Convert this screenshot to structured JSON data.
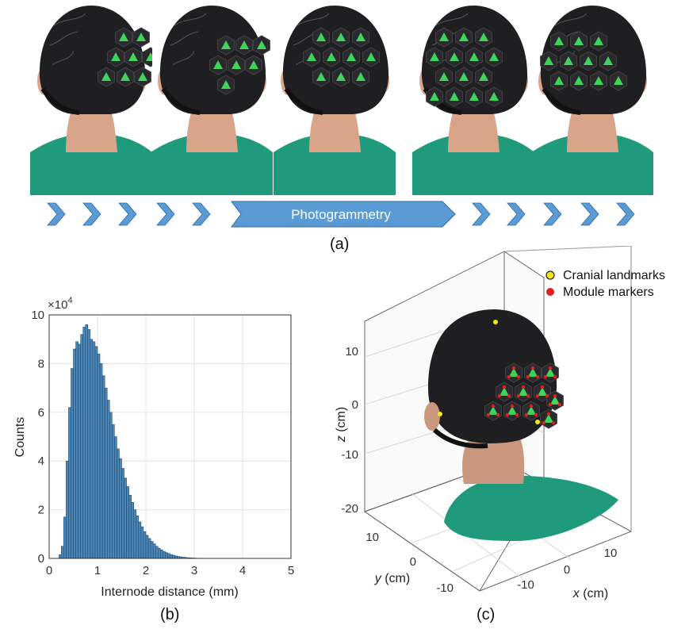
{
  "panel_a": {
    "label": "(a)",
    "arrow_text": "Photogrammetry"
  },
  "panel_b": {
    "label": "(b)",
    "exponent_label": "×10^4",
    "exponent_base": "×10",
    "exponent_power": "4"
  },
  "panel_c": {
    "label": "(c)",
    "legend": [
      {
        "label": "Cranial landmarks",
        "color": "#f3e61a"
      },
      {
        "label": "Module markers",
        "color": "#e31e1e"
      }
    ],
    "xlabel_var": "x",
    "xlabel_unit": " (cm)",
    "ylabel_var": "y",
    "ylabel_unit": " (cm)",
    "zlabel_var": "z",
    "zlabel_unit": " (cm)",
    "z_ticks": [
      "10",
      "0",
      "-10",
      "-20"
    ],
    "y_ticks": [
      "10",
      "0",
      "-10"
    ],
    "x_ticks": [
      "-10",
      "0",
      "10"
    ]
  },
  "colors": {
    "cap": "#1f1f22",
    "module_green": "#3fd35a",
    "shirt": "#1f9a7c",
    "skin": "#d9a58a",
    "arrow": "#5b9bd5",
    "bar": "#4a86b8"
  },
  "chart_data": {
    "type": "bar",
    "title": "",
    "xlabel": "Internode distance (mm)",
    "ylabel": "Counts",
    "xlim": [
      0,
      5
    ],
    "ylim": [
      0,
      10
    ],
    "y_scale_note": "×10^4",
    "x_ticks": [
      "0",
      "1",
      "2",
      "3",
      "4",
      "5"
    ],
    "y_ticks": [
      "0",
      "2",
      "4",
      "6",
      "8",
      "10"
    ],
    "grid": true,
    "bin_width": 0.05,
    "series": [
      {
        "x": [
          0.2,
          0.25,
          0.3,
          0.35,
          0.4,
          0.45,
          0.5,
          0.55,
          0.6,
          0.65,
          0.7,
          0.75,
          0.8,
          0.85,
          0.9,
          0.95,
          1.0,
          1.05,
          1.1,
          1.15,
          1.2,
          1.25,
          1.3,
          1.35,
          1.4,
          1.45,
          1.5,
          1.55,
          1.6,
          1.65,
          1.7,
          1.75,
          1.8,
          1.85,
          1.9,
          1.95,
          2.0,
          2.05,
          2.1,
          2.15,
          2.2,
          2.25,
          2.3,
          2.35,
          2.4,
          2.45,
          2.5,
          2.55,
          2.6,
          2.65,
          2.7,
          2.75,
          2.8,
          2.85,
          2.9,
          2.95,
          3.0,
          3.1,
          3.2,
          3.3,
          3.4,
          3.5
        ],
        "values": [
          0.15,
          0.5,
          1.7,
          4.0,
          6.2,
          7.8,
          8.6,
          8.9,
          8.8,
          9.2,
          9.5,
          9.6,
          9.4,
          9.0,
          8.9,
          8.7,
          8.4,
          8.0,
          7.5,
          7.0,
          6.5,
          6.0,
          5.5,
          5.0,
          4.5,
          4.1,
          3.7,
          3.3,
          2.95,
          2.6,
          2.3,
          2.0,
          1.75,
          1.5,
          1.3,
          1.1,
          0.95,
          0.82,
          0.7,
          0.6,
          0.5,
          0.42,
          0.35,
          0.29,
          0.24,
          0.2,
          0.16,
          0.13,
          0.1,
          0.08,
          0.065,
          0.05,
          0.04,
          0.03,
          0.024,
          0.018,
          0.014,
          0.01,
          0.007,
          0.005,
          0.003,
          0.002
        ]
      }
    ]
  }
}
